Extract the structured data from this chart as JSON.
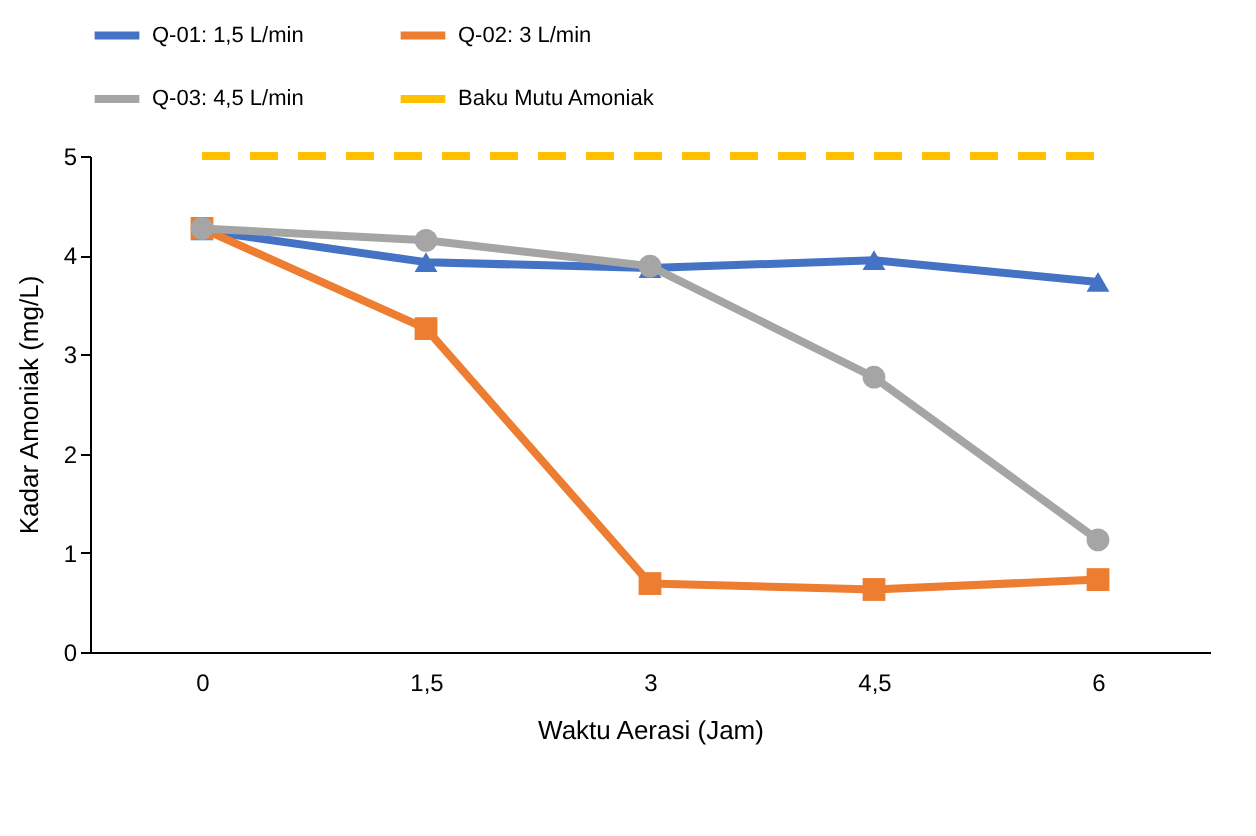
{
  "chart_data": {
    "type": "line",
    "xlabel": "Waktu Aerasi (Jam)",
    "ylabel": "Kadar Amoniak (mg/L)",
    "categories": [
      "0",
      "1,5",
      "3",
      "4,5",
      "6"
    ],
    "ylim": [
      0,
      5
    ],
    "yticks": [
      0,
      1,
      2,
      3,
      4,
      5
    ],
    "grid": false,
    "legend": "top",
    "series": [
      {
        "name": "Q-01: 1,5 L/min",
        "color": "#4472c4",
        "marker": "triangle",
        "line_style": "solid",
        "values": [
          4.25,
          3.93,
          3.87,
          3.95,
          3.73
        ]
      },
      {
        "name": "Q-02: 3 L/min",
        "color": "#ed7d31",
        "marker": "square",
        "line_style": "solid",
        "values": [
          4.27,
          3.26,
          0.69,
          0.63,
          0.73
        ]
      },
      {
        "name": "Q-03: 4,5 L/min",
        "color": "#a5a5a5",
        "marker": "circle",
        "line_style": "solid",
        "values": [
          4.27,
          4.15,
          3.89,
          2.77,
          1.13
        ]
      },
      {
        "name": "Baku Mutu Amoniak",
        "color": "#ffc000",
        "marker": "none",
        "line_style": "dashed",
        "values": [
          5,
          5,
          5,
          5,
          5
        ]
      }
    ]
  }
}
